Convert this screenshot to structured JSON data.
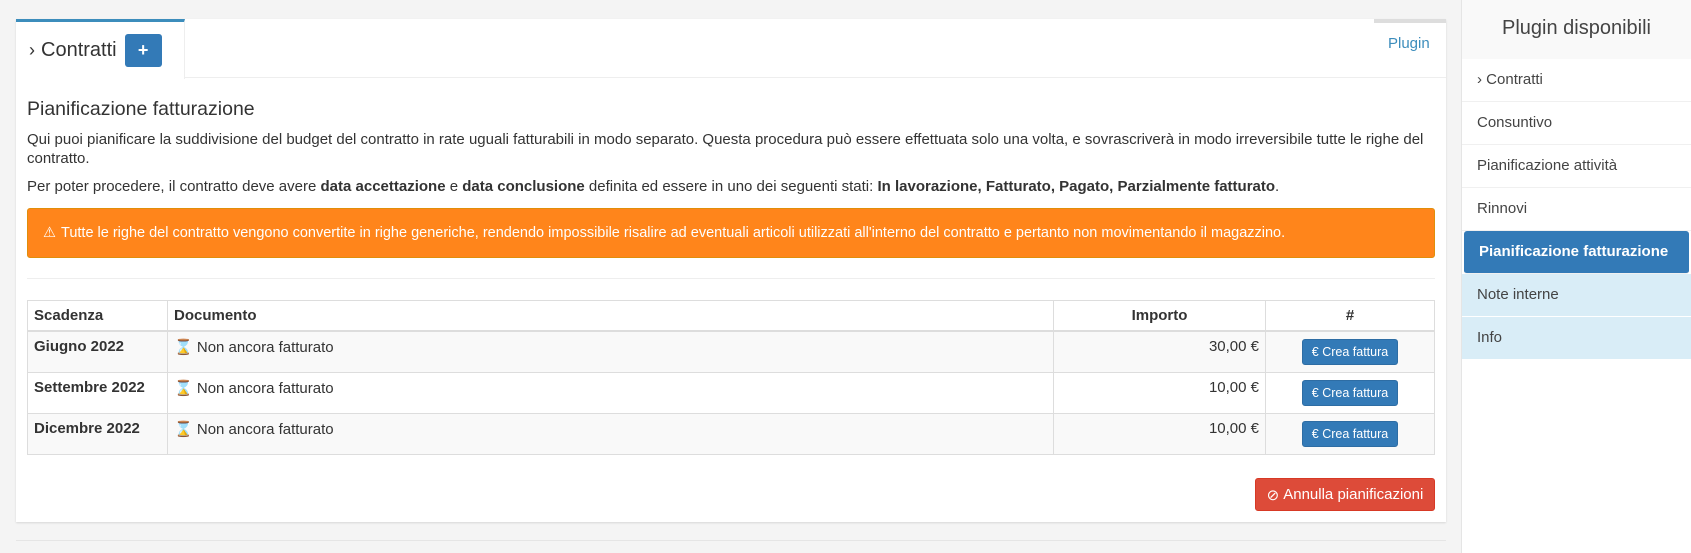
{
  "tabs": {
    "active_label": "Contratti",
    "add_icon": "plus-icon",
    "plugin_label": "Plugin"
  },
  "content": {
    "heading": "Pianificazione fatturazione",
    "intro": "Qui puoi pianificare la suddivisione del budget del contratto in rate uguali fatturabili in modo separato. Questa procedura può essere effettuata solo una volta, e sovrascriverà in modo irreversibile tutte le righe del contratto.",
    "req": {
      "pre": "Per poter procedere, il contratto deve avere ",
      "b1": "data accettazione",
      "mid": " e ",
      "b2": "data conclusione",
      "post": " definita ed essere in uno dei seguenti stati: ",
      "b3": "In lavorazione, Fatturato, Pagato, Parzialmente fatturato",
      "end": "."
    },
    "alert": "Tutte le righe del contratto vengono convertite in righe generiche, rendendo impossibile risalire ad eventuali articoli utilizzati all'interno del contratto e pertanto non movimentando il magazzino.",
    "alert_color": "#ff851b"
  },
  "table": {
    "headers": [
      "Scadenza",
      "Documento",
      "Importo",
      "#"
    ],
    "rows": [
      {
        "scadenza": "Giugno 2022",
        "documento": "Non ancora fatturato",
        "importo": "30,00 €",
        "action": "€ Crea fattura"
      },
      {
        "scadenza": "Settembre 2022",
        "documento": "Non ancora fatturato",
        "importo": "10,00 €",
        "action": "€ Crea fattura"
      },
      {
        "scadenza": "Dicembre 2022",
        "documento": "Non ancora fatturato",
        "importo": "10,00 €",
        "action": "€ Crea fattura"
      }
    ]
  },
  "cancel_button": "Annulla pianificazioni",
  "sidebar": {
    "title": "Plugin disponibili",
    "items": [
      {
        "label": "Contratti"
      },
      {
        "label": "Consuntivo"
      },
      {
        "label": "Pianificazione attività"
      },
      {
        "label": "Rinnovi"
      },
      {
        "label": "Pianificazione fatturazione",
        "active": true
      },
      {
        "label": "Note interne"
      },
      {
        "label": "Info"
      }
    ]
  }
}
